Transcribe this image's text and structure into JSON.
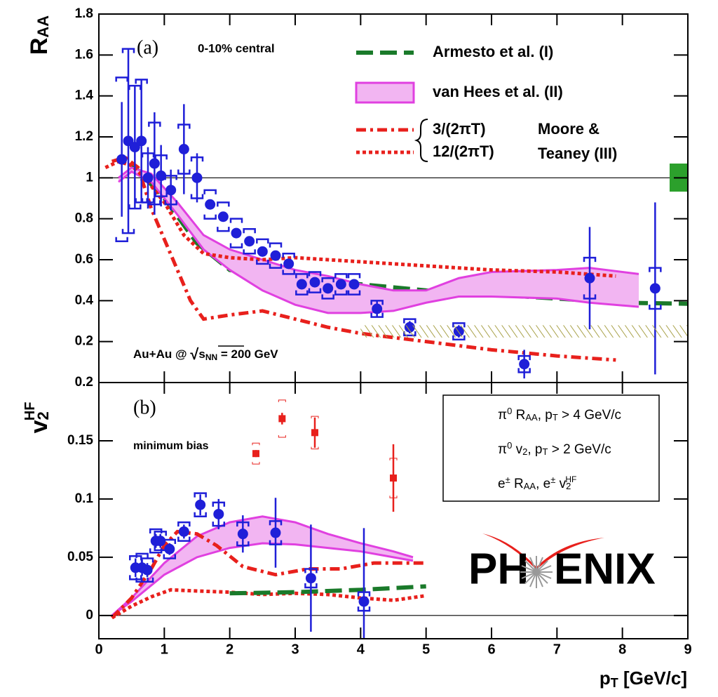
{
  "chart_data": [
    {
      "type": "scatter",
      "label": "(a)",
      "annotation": "0-10% central",
      "system": [
        "Au+Au @ ",
        "√",
        "s",
        "NN",
        " = 200 GeV"
      ],
      "ylabel": [
        "R",
        "AA"
      ],
      "xlim": [
        0,
        9
      ],
      "xticks": [
        0,
        1,
        2,
        3,
        4,
        5,
        6,
        7,
        8,
        9
      ],
      "ylim": [
        0,
        1.8
      ],
      "yticks": [
        0.2,
        0.4,
        0.6,
        0.8,
        1,
        1.2,
        1.4,
        1.6,
        1.8
      ],
      "reference_line": 1,
      "legend_group_label": [
        "Moore &",
        "Teaney (III)"
      ],
      "series": [
        {
          "type": "line",
          "style": "dashed",
          "name": "Armesto et al. (I)",
          "color": "#1a7a2a",
          "x": [
            0.5,
            1,
            1.5,
            2,
            3,
            4,
            5,
            6,
            7,
            8,
            9
          ],
          "y": [
            1.07,
            0.9,
            0.68,
            0.55,
            0.51,
            0.48,
            0.45,
            0.43,
            0.41,
            0.39,
            0.385
          ]
        },
        {
          "type": "band",
          "name": "van Hees et al. (II)",
          "color": "#e040e0",
          "fill": "#f2b5f2",
          "x": [
            0.3,
            0.5,
            0.8,
            1.2,
            1.6,
            2,
            2.5,
            3,
            3.5,
            4,
            4.5,
            5,
            5.5,
            6,
            7,
            7.5,
            8.25
          ],
          "low": [
            0.98,
            1.03,
            0.98,
            0.82,
            0.65,
            0.55,
            0.45,
            0.38,
            0.34,
            0.34,
            0.35,
            0.39,
            0.42,
            0.42,
            0.41,
            0.39,
            0.37
          ],
          "high": [
            1.0,
            1.05,
            1.02,
            0.88,
            0.72,
            0.65,
            0.6,
            0.55,
            0.52,
            0.48,
            0.45,
            0.45,
            0.51,
            0.54,
            0.55,
            0.56,
            0.53
          ]
        },
        {
          "type": "line",
          "style": "dashdot",
          "name": "3/(2πT)",
          "color": "#e8201c",
          "x": [
            0.2,
            0.4,
            0.6,
            0.8,
            1,
            1.2,
            1.4,
            1.6,
            2,
            2.5,
            3,
            3.5,
            4,
            5,
            6,
            7,
            7.9
          ],
          "y": [
            1.08,
            1.1,
            1.05,
            0.85,
            0.7,
            0.55,
            0.4,
            0.31,
            0.33,
            0.35,
            0.31,
            0.27,
            0.24,
            0.2,
            0.16,
            0.13,
            0.11
          ]
        },
        {
          "type": "line",
          "style": "dotted",
          "name": "12/(2πT)",
          "color": "#e8201c",
          "x": [
            0.1,
            0.3,
            0.5,
            0.7,
            1,
            1.3,
            1.6,
            2,
            2.5,
            3,
            3.5,
            4,
            5,
            6,
            7,
            7.9
          ],
          "y": [
            1.05,
            1.08,
            1.06,
            1.0,
            0.88,
            0.72,
            0.63,
            0.61,
            0.6,
            0.61,
            0.6,
            0.59,
            0.57,
            0.55,
            0.54,
            0.52
          ]
        },
        {
          "type": "points",
          "marker": "circle",
          "color": "#1f1fd8",
          "x": [
            0.35,
            0.45,
            0.55,
            0.65,
            0.75,
            0.85,
            0.95,
            1.1,
            1.3,
            1.5,
            1.7,
            1.9,
            2.1,
            2.3,
            2.5,
            2.7,
            2.9,
            3.1,
            3.3,
            3.5,
            3.7,
            3.9,
            4.25,
            4.75,
            5.5,
            6.5,
            7.5,
            8.5
          ],
          "values": [
            1.09,
            1.18,
            1.15,
            1.18,
            1.0,
            1.07,
            1.01,
            0.94,
            1.14,
            1.0,
            0.87,
            0.81,
            0.73,
            0.69,
            0.64,
            0.62,
            0.58,
            0.48,
            0.49,
            0.46,
            0.48,
            0.48,
            0.36,
            0.27,
            0.25,
            0.09,
            0.51,
            0.46
          ],
          "errors": [
            0.28,
            0.45,
            0.3,
            0.3,
            0.15,
            0.25,
            0.15,
            0.1,
            0.22,
            0.12,
            0.02,
            0.02,
            0.02,
            0.02,
            0.02,
            0.02,
            0.02,
            0.02,
            0.02,
            0.02,
            0.02,
            0.02,
            0.04,
            0.03,
            0.03,
            0.07,
            0.25,
            0.42
          ],
          "sys": [
            0.4,
            0.45,
            0.3,
            0.3,
            0.12,
            0.2,
            0.1,
            0.07,
            0.12,
            0.1,
            0.07,
            0.07,
            0.07,
            0.06,
            0.06,
            0.06,
            0.05,
            0.05,
            0.05,
            0.05,
            0.05,
            0.05,
            0.04,
            0.04,
            0.04,
            0.04,
            0.1,
            0.1
          ]
        },
        {
          "type": "band",
          "hatch": true,
          "name": [
            "π",
            "0",
            " R",
            "AA",
            ", p",
            "T",
            " > 4 GeV/c"
          ],
          "color": "#a9a24a",
          "x": [
            4,
            9
          ],
          "low": [
            0.22,
            0.22
          ],
          "high": [
            0.28,
            0.28
          ]
        }
      ]
    },
    {
      "type": "scatter",
      "label": "(b)",
      "annotation": "minimum bias",
      "ylabel": [
        "v",
        "2",
        "HF"
      ],
      "xlabel": [
        "p",
        "T",
        " [GeV/c]"
      ],
      "logo": [
        "PH",
        "ENIX"
      ],
      "xlim": [
        0,
        9
      ],
      "xticks": [
        0,
        1,
        2,
        3,
        4,
        5,
        6,
        7,
        8,
        9
      ],
      "ylim": [
        -0.02,
        0.2
      ],
      "yticks": [
        0,
        0.05,
        0.1,
        0.15,
        0.2
      ],
      "reference_line": 0,
      "series": [
        {
          "type": "band",
          "color": "#e040e0",
          "fill": "#f2b5f2",
          "x": [
            0.2,
            0.5,
            1,
            1.5,
            2,
            2.5,
            3,
            3.5,
            4,
            4.5,
            4.8
          ],
          "low": [
            0,
            0.012,
            0.035,
            0.05,
            0.058,
            0.062,
            0.061,
            0.058,
            0.055,
            0.05,
            0.047
          ],
          "high": [
            0,
            0.015,
            0.045,
            0.068,
            0.08,
            0.085,
            0.08,
            0.07,
            0.062,
            0.055,
            0.05
          ]
        },
        {
          "type": "line",
          "style": "dashdot",
          "color": "#e8201c",
          "x": [
            0.2,
            0.5,
            0.8,
            1,
            1.2,
            1.5,
            1.8,
            2.2,
            2.7,
            3.2,
            3.7,
            4.2,
            5
          ],
          "y": [
            -0.002,
            0.015,
            0.04,
            0.06,
            0.072,
            0.07,
            0.06,
            0.042,
            0.035,
            0.04,
            0.04,
            0.045,
            0.045
          ]
        },
        {
          "type": "line",
          "style": "dotted",
          "color": "#e8201c",
          "x": [
            0.2,
            0.5,
            0.8,
            1.1,
            1.5,
            2,
            2.5,
            3,
            3.5,
            4,
            4.5,
            5
          ],
          "y": [
            -0.002,
            0.008,
            0.016,
            0.022,
            0.021,
            0.02,
            0.018,
            0.019,
            0.018,
            0.015,
            0.013,
            0.017
          ]
        },
        {
          "type": "line",
          "style": "dashed",
          "color": "#1a7a2a",
          "x": [
            2,
            3,
            4,
            5
          ],
          "y": [
            0.019,
            0.02,
            0.022,
            0.025
          ]
        },
        {
          "type": "points",
          "marker": "square",
          "name": [
            "π",
            "0",
            " v",
            "2",
            ", p",
            "T",
            " > 2 GeV/c"
          ],
          "color": "#e8201c",
          "x": [
            2.4,
            2.8,
            3.3,
            4.5
          ],
          "values": [
            0.139,
            0.169,
            0.157,
            0.118
          ],
          "errors": [
            0.003,
            0.005,
            0.013,
            0.029
          ],
          "sys": [
            0.009,
            0.016,
            0.014,
            0.017
          ]
        },
        {
          "type": "points",
          "marker": "circle",
          "name": [
            "e",
            "±",
            " R",
            "AA",
            ", e",
            "±",
            " v",
            "2",
            "HF"
          ],
          "color": "#1f1fd8",
          "x": [
            0.56,
            0.66,
            0.74,
            0.87,
            0.94,
            1.08,
            1.3,
            1.55,
            1.83,
            2.2,
            2.7,
            3.24,
            4.05
          ],
          "values": [
            0.041,
            0.041,
            0.039,
            0.064,
            0.064,
            0.057,
            0.072,
            0.095,
            0.087,
            0.07,
            0.071,
            0.032,
            0.012
          ],
          "errors": [
            0.008,
            0.007,
            0.006,
            0.006,
            0.006,
            0.005,
            0.006,
            0.009,
            0.013,
            0.016,
            0.03,
            0.046,
            0.063
          ],
          "sys": [
            0.01,
            0.012,
            0.01,
            0.01,
            0.008,
            0.008,
            0.008,
            0.01,
            0.01,
            0.01,
            0.01,
            0.008,
            0.008
          ]
        }
      ]
    }
  ]
}
